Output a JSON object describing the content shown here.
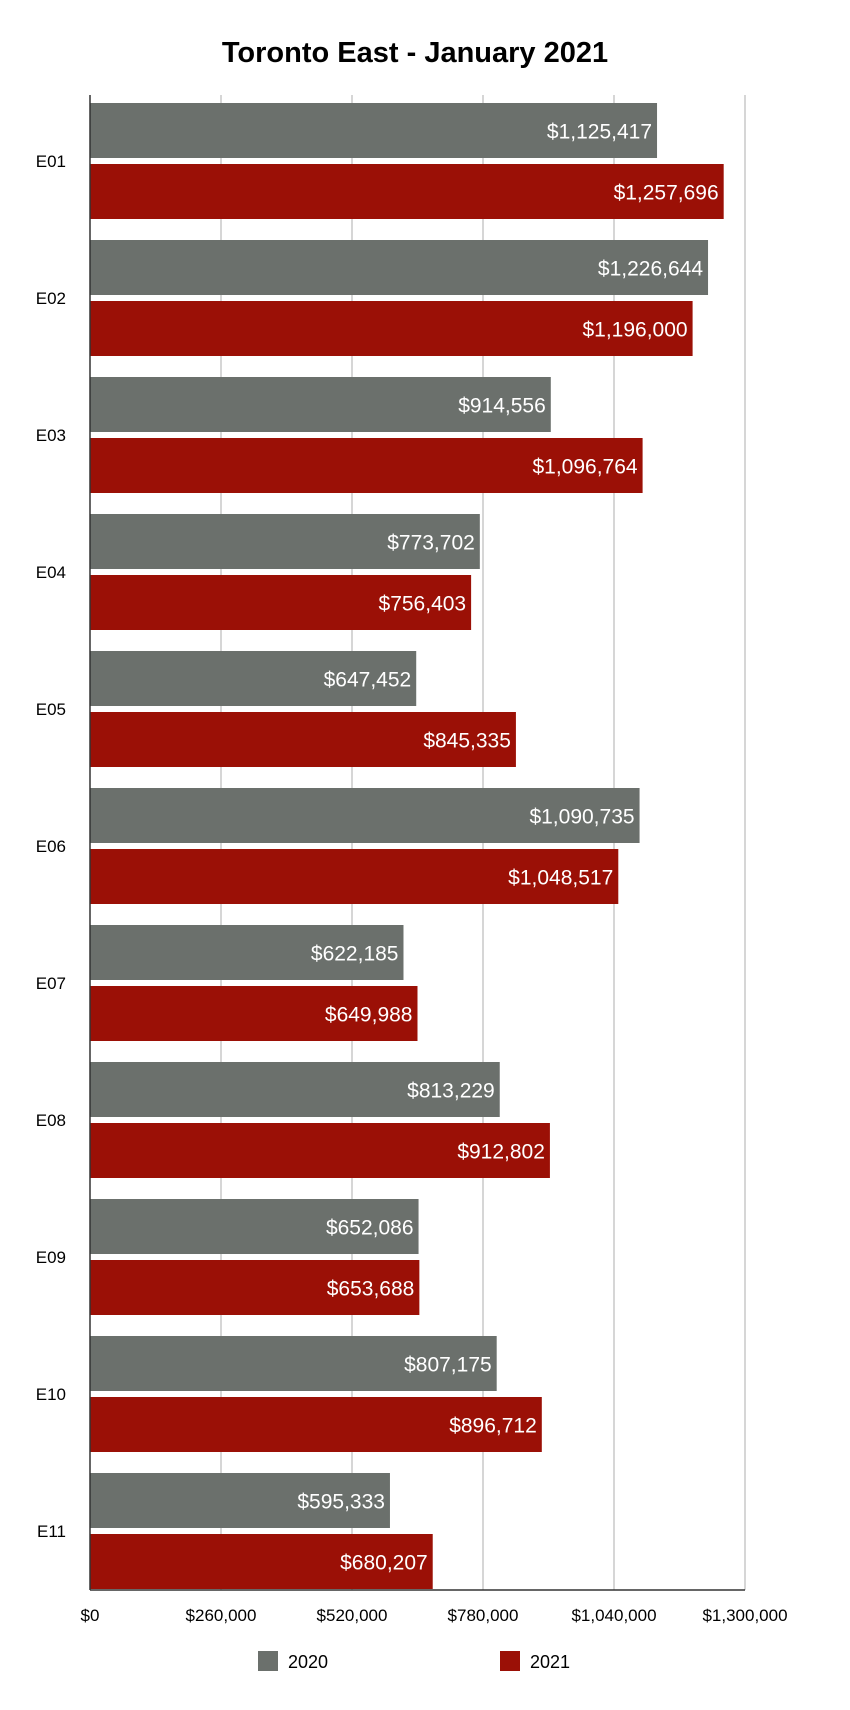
{
  "chart_data": {
    "type": "bar",
    "orientation": "horizontal",
    "title": "Toronto East - January 2021",
    "xlabel": "",
    "ylabel": "",
    "categories": [
      "E01",
      "E02",
      "E03",
      "E04",
      "E05",
      "E06",
      "E07",
      "E08",
      "E09",
      "E10",
      "E11"
    ],
    "series": [
      {
        "name": "2020",
        "color": "#6b706c",
        "values": [
          1125417,
          1226644,
          914556,
          773702,
          647452,
          1090735,
          622185,
          813229,
          652086,
          807175,
          595333
        ],
        "labels": [
          "$1,125,417",
          "$1,226,644",
          "$914,556",
          "$773,702",
          "$647,452",
          "$1,090,735",
          "$622,185",
          "$813,229",
          "$652,086",
          "$807,175",
          "$595,333"
        ]
      },
      {
        "name": "2021",
        "color": "#9b1006",
        "values": [
          1257696,
          1196000,
          1096764,
          756403,
          845335,
          1048517,
          649988,
          912802,
          653688,
          896712,
          680207
        ],
        "labels": [
          "$1,257,696",
          "$1,196,000",
          "$1,096,764",
          "$756,403",
          "$845,335",
          "$1,048,517",
          "$649,988",
          "$912,802",
          "$653,688",
          "$896,712",
          "$680,207"
        ]
      }
    ],
    "xlim": [
      0,
      1300000
    ],
    "ticks": [
      0,
      260000,
      520000,
      780000,
      1040000,
      1300000
    ],
    "tick_labels": [
      "$0",
      "$260,000",
      "$520,000",
      "$780,000",
      "$1,040,000",
      "$1,300,000"
    ],
    "grid": true,
    "legend_position": "bottom"
  }
}
